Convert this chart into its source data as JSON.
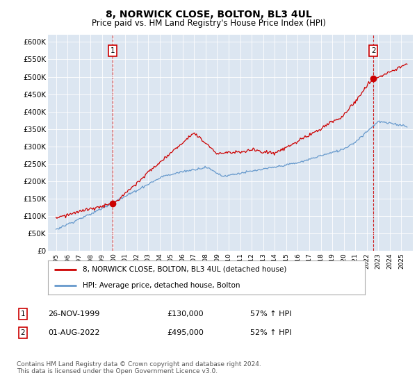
{
  "title": "8, NORWICK CLOSE, BOLTON, BL3 4UL",
  "subtitle": "Price paid vs. HM Land Registry's House Price Index (HPI)",
  "ylabel_ticks": [
    "£0",
    "£50K",
    "£100K",
    "£150K",
    "£200K",
    "£250K",
    "£300K",
    "£350K",
    "£400K",
    "£450K",
    "£500K",
    "£550K",
    "£600K"
  ],
  "ylim": [
    0,
    620000
  ],
  "ytick_values": [
    0,
    50000,
    100000,
    150000,
    200000,
    250000,
    300000,
    350000,
    400000,
    450000,
    500000,
    550000,
    600000
  ],
  "plot_bg": "#dce6f1",
  "legend_label_red": "8, NORWICK CLOSE, BOLTON, BL3 4UL (detached house)",
  "legend_label_blue": "HPI: Average price, detached house, Bolton",
  "red_color": "#cc0000",
  "blue_color": "#6699cc",
  "marker1_x": 1999.917,
  "marker1_price": 130000,
  "marker1_text": "26-NOV-1999",
  "marker1_amount": "£130,000",
  "marker1_pct": "57% ↑ HPI",
  "marker2_x": 2022.583,
  "marker2_price": 495000,
  "marker2_text": "01-AUG-2022",
  "marker2_amount": "£495,000",
  "marker2_pct": "52% ↑ HPI",
  "footnote": "Contains HM Land Registry data © Crown copyright and database right 2024.\nThis data is licensed under the Open Government Licence v3.0."
}
